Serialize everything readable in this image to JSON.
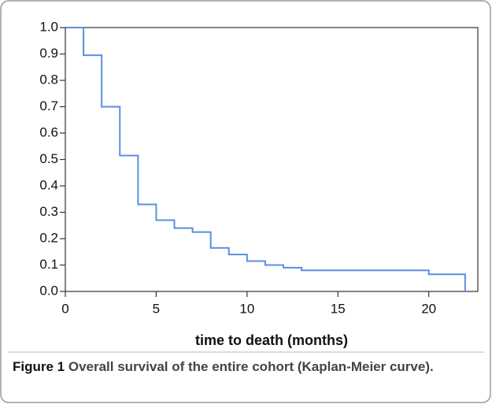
{
  "chart_data": {
    "type": "step",
    "x_label": "time to death (months)",
    "x": [
      0,
      1,
      2,
      3,
      4,
      5,
      6,
      7,
      8,
      9,
      10,
      11,
      12,
      13,
      20,
      22
    ],
    "values": [
      1.0,
      0.895,
      0.7,
      0.515,
      0.33,
      0.27,
      0.24,
      0.225,
      0.165,
      0.14,
      0.115,
      0.1,
      0.09,
      0.08,
      0.065,
      0
    ],
    "color": "#5b8ee0",
    "xlim": [
      0,
      22.7
    ],
    "xticks": [
      0,
      5,
      10,
      15,
      20
    ],
    "ylim": [
      0,
      1
    ],
    "yticks": [
      {
        "value": 0,
        "label": "0.0"
      },
      0.1,
      0.2,
      0.3,
      0.4,
      0.5,
      0.6,
      0.7,
      0.8,
      0.9,
      {
        "value": 1,
        "label": "1.0"
      }
    ],
    "grid": false
  },
  "caption": {
    "label": "Figure 1",
    "text": "Overall survival of the entire cohort (Kaplan-Meier curve)."
  }
}
